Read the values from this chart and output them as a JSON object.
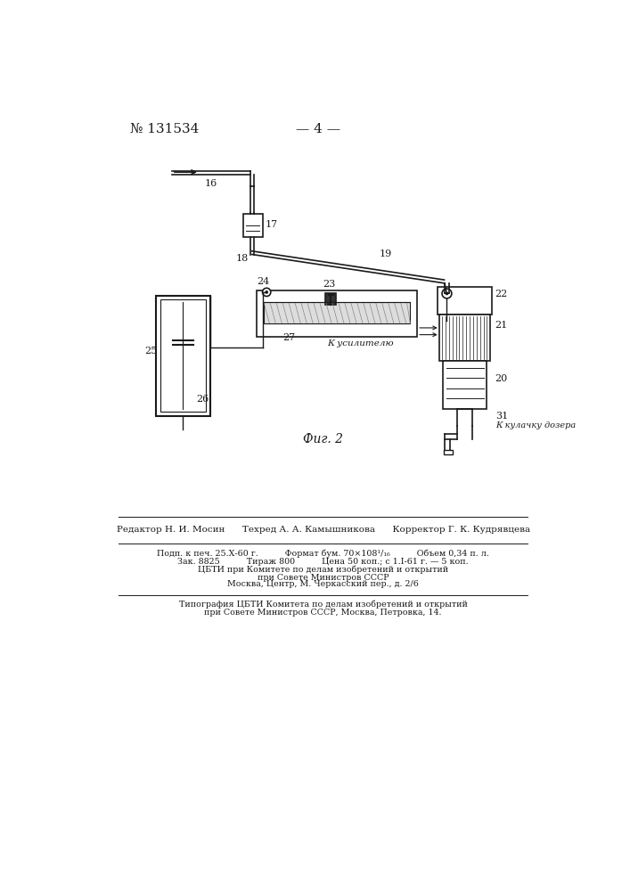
{
  "bg_color": "#ffffff",
  "line_color": "#1a1a1a",
  "header_patent": "№ 131534",
  "header_page": "— 4 —",
  "fig_label": "Фиг. 2",
  "editor_line": "Редактор Н. И. Мосин      Техред А. А. Камышникова      Корректор Г. К. Кудрявцева",
  "info_line1": "Подп. к печ. 25.Х-60 г.          Формат бум. 70×108¹/₁₆          Объем 0,34 п. л.",
  "info_line2": "Зак. 8825          Тираж 800          Цена 50 коп.; с 1.I-61 г. — 5 коп.",
  "info_line3": "ЦБТИ при Комитете по делам изобретений и открытий",
  "info_line4": "при Совете Министров СССР",
  "info_line5": "Москва, Центр, М. Черкасский пер., д. 2/6",
  "footer_line1": "Типография ЦБТИ Комитета по делам изобретений и открытий",
  "footer_line2": "при Совете Министров СССР, Москва, Петровка, 14."
}
